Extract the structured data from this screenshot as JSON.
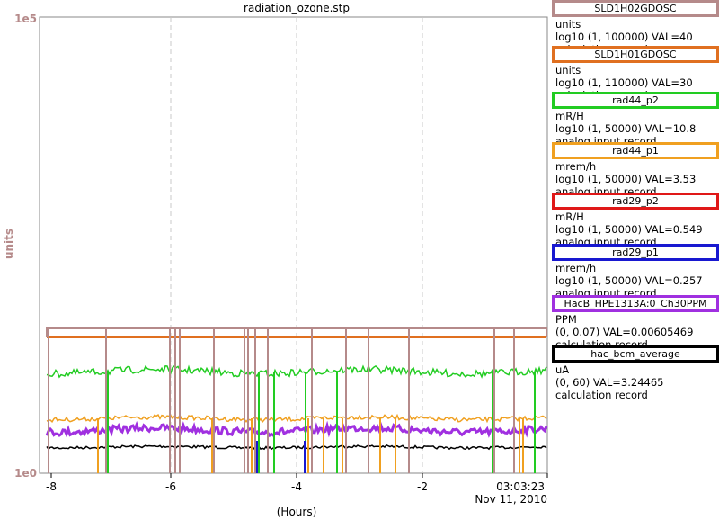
{
  "title": "radiation_ozone.stp",
  "y_axis": {
    "label": "units",
    "top_tick": "1e5",
    "bottom_tick": "1e0",
    "color": "#b58a8a"
  },
  "x_axis": {
    "label": "(Hours)",
    "ticks": [
      "-8",
      "-6",
      "-4",
      "-2",
      "03:03:23"
    ],
    "date": "Nov 11, 2010"
  },
  "legend": [
    {
      "name": "SLD1H02GDOSC",
      "units": "units",
      "range": "log10 (1, 100000) VAL=40",
      "type": "calculation record",
      "color": "#b58a8a"
    },
    {
      "name": "SLD1H01GDOSC",
      "units": "units",
      "range": "log10 (1, 110000) VAL=30",
      "type": "calculation record",
      "color": "#e07020"
    },
    {
      "name": "rad44_p2",
      "units": "mR/H",
      "range": "log10 (1, 50000) VAL=10.8",
      "type": "analog input record",
      "color": "#22cc22"
    },
    {
      "name": "rad44_p1",
      "units": "mrem/h",
      "range": "log10 (1, 50000) VAL=3.53",
      "type": "analog input record",
      "color": "#f0a020"
    },
    {
      "name": "rad29_p2",
      "units": "mR/H",
      "range": "log10 (1, 50000) VAL=0.549",
      "type": "analog input record",
      "color": "#e01818"
    },
    {
      "name": "rad29_p1",
      "units": "mrem/h",
      "range": "log10 (1, 50000) VAL=0.257",
      "type": "analog input record",
      "color": "#1818d0"
    },
    {
      "name": "HacB_HPE1313A:0_Ch30PPM",
      "units": "PPM",
      "range": "(0, 0.07) VAL=0.00605469",
      "type": "calculation record",
      "color": "#a030e0"
    },
    {
      "name": "hac_bcm_average",
      "units": "uA",
      "range": "(0, 60) VAL=3.24465",
      "type": "calculation record",
      "color": "#000000"
    }
  ]
}
